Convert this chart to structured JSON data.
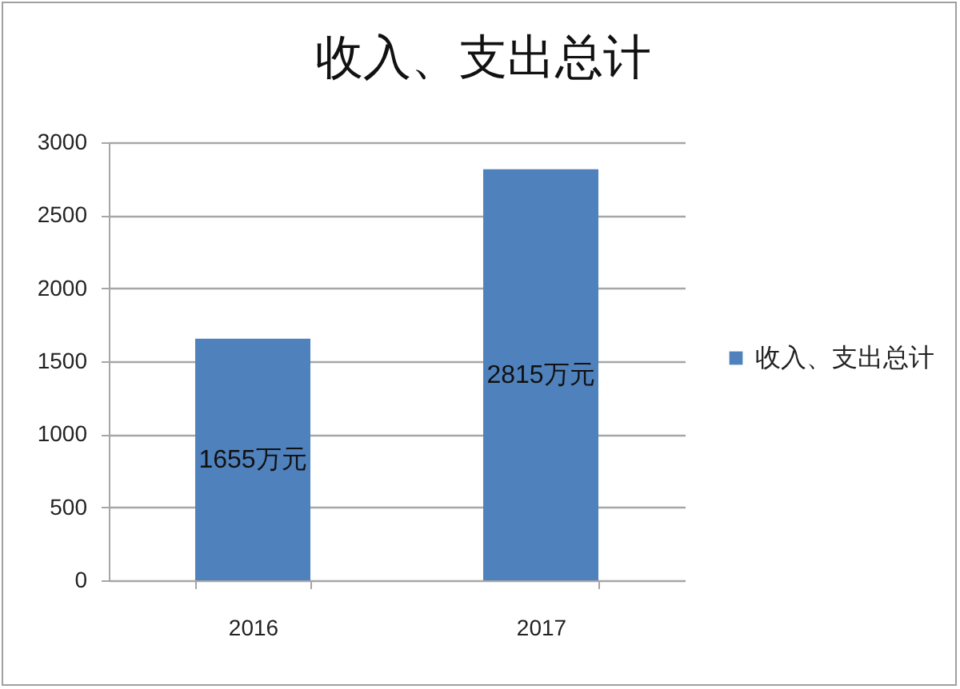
{
  "chart_data": {
    "type": "bar",
    "title": "收入、支出总计",
    "categories": [
      "2016",
      "2017"
    ],
    "series": [
      {
        "name": "收入、支出总计",
        "color": "#4f81bd",
        "values": [
          1655,
          2815
        ],
        "value_labels": [
          "1655万元",
          "2815万元"
        ]
      }
    ],
    "ylim": [
      0,
      3000
    ],
    "yticks": [
      0,
      500,
      1000,
      1500,
      2000,
      2500,
      3000
    ],
    "grid": "y",
    "legend": "right"
  }
}
